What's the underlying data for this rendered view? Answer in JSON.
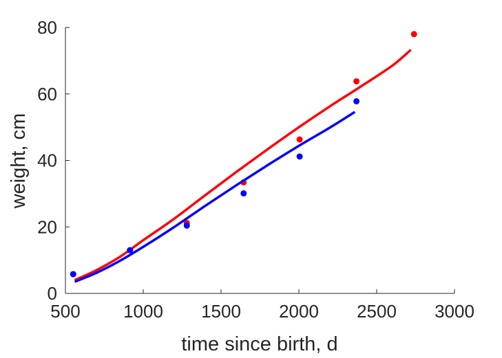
{
  "chart_data": {
    "type": "scatter",
    "title": "",
    "xlabel": "time since birth, d",
    "ylabel": "weight, cm",
    "xlim": [
      500,
      3000
    ],
    "ylim": [
      0,
      80
    ],
    "xticks": [
      500,
      1000,
      1500,
      2000,
      2500,
      3000
    ],
    "yticks": [
      0,
      20,
      40,
      60,
      80
    ],
    "xtick_labels": [
      "500",
      "1000",
      "1500",
      "2000",
      "2500",
      "3000"
    ],
    "ytick_labels": [
      "0",
      "20",
      "40",
      "60",
      "80"
    ],
    "grid": false,
    "legend": "none",
    "series": [
      {
        "color": "#ff0000",
        "points": {
          "x": [
            550,
            915,
            1280,
            1645,
            2005,
            2370,
            2740
          ],
          "y": [
            5.8,
            13.0,
            21.2,
            33.4,
            46.3,
            63.8,
            78.0
          ]
        },
        "fit": {
          "x": [
            560,
            700,
            850,
            1000,
            1200,
            1400,
            1600,
            1800,
            2000,
            2200,
            2400,
            2600,
            2720
          ],
          "y": [
            4.0,
            7.0,
            11.0,
            16.0,
            22.5,
            29.6,
            36.6,
            43.4,
            50.0,
            56.3,
            62.3,
            68.5,
            73.3
          ]
        }
      },
      {
        "color": "#0000ff",
        "points": {
          "x": [
            550,
            915,
            1280,
            1645,
            2005,
            2370
          ],
          "y": [
            5.8,
            13.0,
            20.4,
            30.1,
            41.2,
            57.8
          ]
        },
        "fit": {
          "x": [
            560,
            700,
            850,
            1000,
            1200,
            1400,
            1600,
            1800,
            2000,
            2200,
            2360
          ],
          "y": [
            3.5,
            6.2,
            9.8,
            14.0,
            20.0,
            26.4,
            32.6,
            38.6,
            44.4,
            49.9,
            54.6
          ]
        }
      }
    ]
  }
}
